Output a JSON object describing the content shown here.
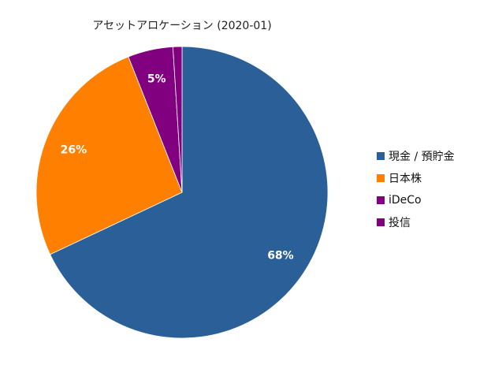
{
  "chart_data": {
    "type": "pie",
    "title": "アセットアロケーション (2020-01)",
    "categories": [
      "現金 / 預貯金",
      "日本株",
      "iDeCo",
      "投信"
    ],
    "values": [
      68,
      26,
      5,
      1
    ],
    "unit": "%",
    "colors": [
      "#2b5f98",
      "#ff7f00",
      "#800080",
      "#800080"
    ],
    "data_labels": [
      "68%",
      "26%",
      "5%",
      ""
    ],
    "start_angle": "12 o'clock",
    "direction": "clockwise",
    "legend_position": "right"
  },
  "legend": [
    {
      "label": "現金 / 預貯金",
      "color": "#2b5f98"
    },
    {
      "label": "日本株",
      "color": "#ff7f00"
    },
    {
      "label": "iDeCo",
      "color": "#800080"
    },
    {
      "label": "投信",
      "color": "#800080"
    }
  ]
}
